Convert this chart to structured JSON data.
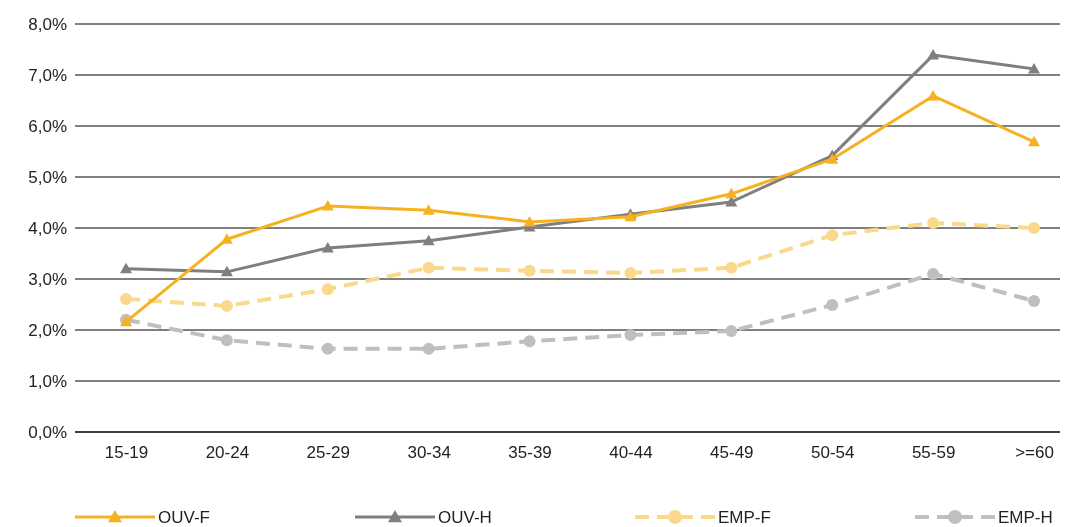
{
  "chart_data": {
    "type": "line",
    "categories": [
      "15-19",
      "20-24",
      "25-29",
      "30-34",
      "35-39",
      "40-44",
      "45-49",
      "50-54",
      "55-59",
      ">=60"
    ],
    "series": [
      {
        "name": "OUV-F",
        "color": "#f5b120",
        "marker": "triangle",
        "line_style": "solid",
        "values": [
          2.16,
          3.78,
          4.43,
          4.35,
          4.12,
          4.22,
          4.67,
          5.35,
          6.59,
          5.69
        ]
      },
      {
        "name": "OUV-H",
        "color": "#7f7f7f",
        "marker": "triangle",
        "line_style": "solid",
        "values": [
          3.2,
          3.14,
          3.61,
          3.75,
          4.02,
          4.27,
          4.51,
          5.42,
          7.39,
          7.12
        ]
      },
      {
        "name": "EMP-F",
        "color": "#fad88c",
        "marker": "circle",
        "line_style": "dashed",
        "values": [
          2.61,
          2.47,
          2.8,
          3.22,
          3.16,
          3.12,
          3.22,
          3.86,
          4.1,
          4.0
        ]
      },
      {
        "name": "EMP-H",
        "color": "#bfbfbf",
        "marker": "circle",
        "line_style": "dashed",
        "values": [
          2.2,
          1.8,
          1.63,
          1.63,
          1.78,
          1.9,
          1.98,
          2.49,
          3.1,
          2.57
        ]
      }
    ],
    "ylim": [
      0,
      8
    ],
    "yticks": [
      {
        "value": 0,
        "label": "0,0%"
      },
      {
        "value": 1,
        "label": "1,0%"
      },
      {
        "value": 2,
        "label": "2,0%"
      },
      {
        "value": 3,
        "label": "3,0%"
      },
      {
        "value": 4,
        "label": "4,0%"
      },
      {
        "value": 5,
        "label": "5,0%"
      },
      {
        "value": 6,
        "label": "6,0%"
      },
      {
        "value": 7,
        "label": "7,0%"
      },
      {
        "value": 8,
        "label": "8,0%"
      }
    ],
    "grid": "y",
    "legend": "bottom"
  }
}
